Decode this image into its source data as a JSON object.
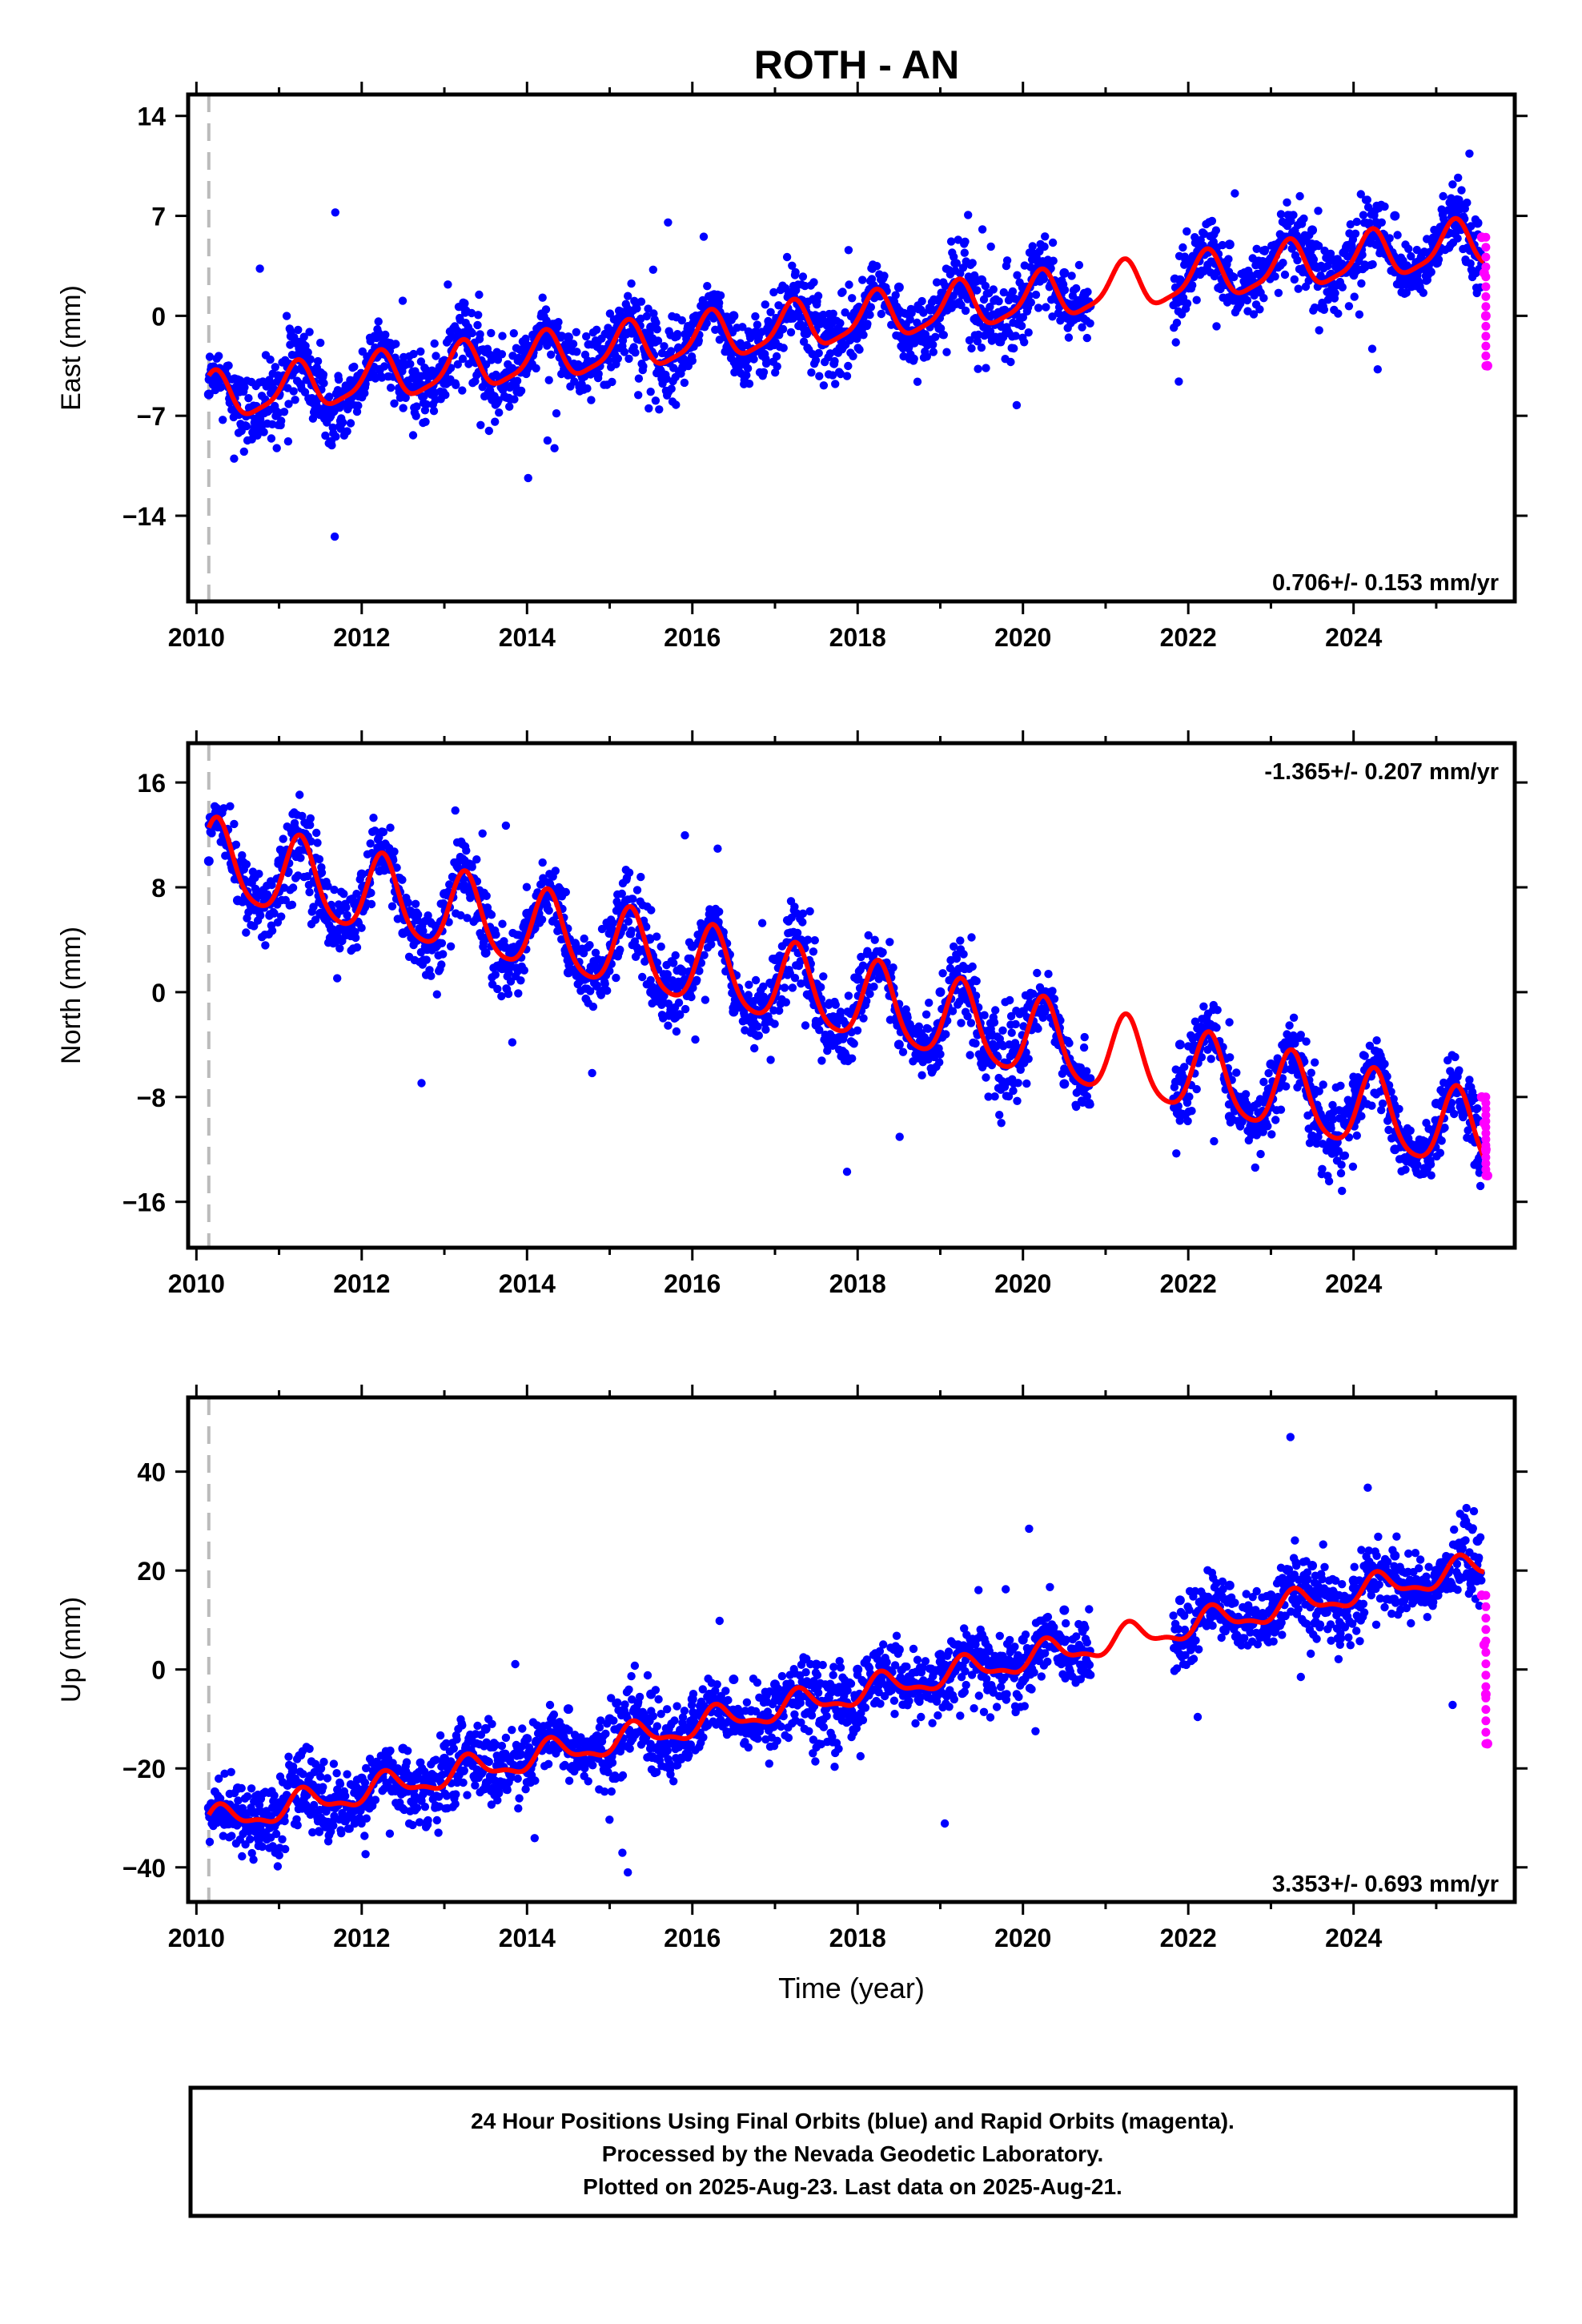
{
  "title": "ROTH - AN",
  "colors": {
    "final": "#0000ff",
    "rapid": "#ff00ff",
    "model": "#ff0000",
    "start_line": "#bbbbbb"
  },
  "chart_data": [
    {
      "type": "scatter",
      "component": "East",
      "ylabel": "East (mm)",
      "xlabel": "",
      "rate": "0.706+/- 0.153 mm/yr",
      "xlim": [
        2009.9,
        2025.95
      ],
      "ylim": [
        -20,
        15.5
      ],
      "xticks": [
        "2010",
        "2012",
        "2014",
        "2016",
        "2018",
        "2020",
        "2022",
        "2024"
      ],
      "yticks": [
        "14",
        "7",
        "0",
        "-7",
        "-14"
      ],
      "model": {
        "ref_year": 2017.5,
        "start_value": -5.8,
        "rate": 0.706,
        "annual_amp": 1.6,
        "annual_phase": 1.2,
        "semiannual_amp": 0.4,
        "semiannual_phase": 0.3
      },
      "series": [
        {
          "name": "Final Orbits",
          "x": [
            2010.15,
            2010.5,
            2011.0,
            2011.5,
            2012.0,
            2012.5,
            2013.0,
            2013.5,
            2014.0,
            2014.5,
            2015.0,
            2015.5,
            2016.0,
            2016.5,
            2017.0,
            2017.5,
            2018.0,
            2018.5,
            2019.0,
            2019.5,
            2020.0,
            2020.5,
            2021.9,
            2022.5,
            2023.0,
            2023.5,
            2024.0,
            2024.5,
            2025.0,
            2025.5
          ],
          "y": [
            -5.5,
            -4.5,
            -5.5,
            -4.0,
            -4.8,
            -3.5,
            -4.2,
            -2.5,
            -3.0,
            -1.5,
            -2.0,
            -0.8,
            -1.2,
            0.0,
            -0.5,
            1.0,
            0.5,
            2.0,
            1.2,
            2.5,
            2.0,
            3.0,
            2.5,
            5.0,
            4.0,
            6.0,
            4.5,
            7.0,
            5.5,
            6.5
          ]
        },
        {
          "name": "Rapid Orbits",
          "x": [
            2025.55,
            2025.58,
            2025.6,
            2025.62
          ],
          "y": [
            5.5,
            3.0,
            0.0,
            -3.5
          ]
        }
      ]
    },
    {
      "type": "scatter",
      "component": "North",
      "ylabel": "North (mm)",
      "xlabel": "",
      "rate": "-1.365+/- 0.207 mm/yr",
      "xlim": [
        2009.9,
        2025.95
      ],
      "ylim": [
        -19.5,
        19
      ],
      "xticks": [
        "2010",
        "2012",
        "2014",
        "2016",
        "2018",
        "2020",
        "2022",
        "2024"
      ],
      "yticks": [
        "16",
        "8",
        "0",
        "-8",
        "-16"
      ],
      "model": {
        "ref_year": 2017.5,
        "start_value": 10.0,
        "rate": -1.365,
        "annual_amp": 3.0,
        "annual_phase": 0.9,
        "semiannual_amp": 0.5,
        "semiannual_phase": 0.4
      },
      "series": [
        {
          "name": "Final Orbits",
          "x": [
            2010.15,
            2010.5,
            2011.0,
            2011.5,
            2012.0,
            2012.5,
            2013.0,
            2013.5,
            2014.0,
            2014.5,
            2015.0,
            2015.5,
            2016.0,
            2016.5,
            2017.0,
            2017.5,
            2018.0,
            2018.5,
            2019.0,
            2019.5,
            2020.0,
            2020.5,
            2021.9,
            2022.5,
            2023.0,
            2023.5,
            2024.0,
            2024.5,
            2025.0,
            2025.5
          ],
          "y": [
            10.0,
            7.0,
            10.0,
            6.0,
            9.0,
            4.5,
            7.5,
            3.0,
            6.0,
            1.5,
            5.0,
            0.0,
            3.5,
            -1.5,
            2.5,
            -2.5,
            1.0,
            -4.0,
            0.0,
            -5.0,
            -1.5,
            -7.0,
            -4.0,
            -9.5,
            -5.5,
            -11.0,
            -7.0,
            -12.0,
            -8.5,
            -13.0
          ]
        },
        {
          "name": "Rapid Orbits",
          "x": [
            2025.55,
            2025.58,
            2025.6,
            2025.62
          ],
          "y": [
            -8.0,
            -10.0,
            -12.0,
            -14.0
          ]
        }
      ]
    },
    {
      "type": "scatter",
      "component": "Up",
      "ylabel": "Up (mm)",
      "xlabel": "Time (year)",
      "rate": "3.353+/- 0.693 mm/yr",
      "xlim": [
        2009.9,
        2025.95
      ],
      "ylim": [
        -47,
        55
      ],
      "xticks": [
        "2010",
        "2012",
        "2014",
        "2016",
        "2018",
        "2020",
        "2022",
        "2024"
      ],
      "yticks": [
        "40",
        "20",
        "0",
        "-20",
        "-40"
      ],
      "model": {
        "ref_year": 2017.5,
        "start_value": -31.0,
        "rate": 3.353,
        "annual_amp": 2.5,
        "annual_phase": 0.6,
        "semiannual_amp": 1.0,
        "semiannual_phase": 0.2
      },
      "series": [
        {
          "name": "Final Orbits",
          "x": [
            2010.15,
            2010.5,
            2011.0,
            2011.5,
            2012.0,
            2012.5,
            2013.0,
            2013.5,
            2014.0,
            2014.5,
            2015.0,
            2015.5,
            2016.0,
            2016.5,
            2017.0,
            2017.5,
            2018.0,
            2018.5,
            2019.0,
            2019.5,
            2020.0,
            2020.5,
            2021.9,
            2022.5,
            2023.0,
            2023.5,
            2024.0,
            2024.5,
            2025.0,
            2025.5
          ],
          "y": [
            -28.0,
            -24.0,
            -27.0,
            -20.0,
            -22.0,
            -16.0,
            -18.0,
            -12.0,
            -14.0,
            -8.0,
            -10.0,
            -5.0,
            -6.0,
            -2.0,
            -3.0,
            1.0,
            0.0,
            4.0,
            3.0,
            7.0,
            6.0,
            12.0,
            14.0,
            17.0,
            15.0,
            21.0,
            18.0,
            23.0,
            20.0,
            26.0
          ]
        },
        {
          "name": "Rapid Orbits",
          "x": [
            2025.55,
            2025.58,
            2025.6,
            2025.62
          ],
          "y": [
            15.0,
            5.0,
            -5.0,
            -15.0
          ]
        }
      ]
    }
  ],
  "footer": {
    "line1": "24 Hour Positions Using Final Orbits (blue) and Rapid Orbits (magenta).",
    "line2": "Processed by the Nevada Geodetic Laboratory.",
    "line3": "Plotted on 2025-Aug-23. Last data on 2025-Aug-21."
  }
}
